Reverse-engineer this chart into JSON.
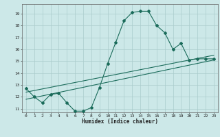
{
  "xlabel": "Humidex (Indice chaleur)",
  "ylabel": "",
  "background_color": "#cce8e8",
  "grid_color": "#aacccc",
  "line_color": "#1a6b5a",
  "xlim": [
    -0.5,
    23.5
  ],
  "ylim": [
    10.7,
    19.8
  ],
  "yticks": [
    11,
    12,
    13,
    14,
    15,
    16,
    17,
    18,
    19
  ],
  "xticks": [
    0,
    1,
    2,
    3,
    4,
    5,
    6,
    7,
    8,
    9,
    10,
    11,
    12,
    13,
    14,
    15,
    16,
    17,
    18,
    19,
    20,
    21,
    22,
    23
  ],
  "curve1_x": [
    0,
    1,
    2,
    3,
    4,
    5,
    6,
    7,
    8,
    9,
    10,
    11,
    12,
    13,
    14,
    15,
    16,
    17,
    18,
    19,
    20,
    21,
    22,
    23
  ],
  "curve1_y": [
    12.7,
    12.0,
    11.5,
    12.2,
    12.3,
    11.5,
    10.8,
    10.8,
    11.1,
    12.8,
    14.8,
    16.6,
    18.4,
    19.1,
    19.2,
    19.2,
    18.0,
    17.4,
    16.0,
    16.5,
    15.1,
    15.2,
    15.2,
    15.2
  ],
  "line1_x": [
    0,
    23
  ],
  "line1_y": [
    11.8,
    15.1
  ],
  "line2_x": [
    0,
    23
  ],
  "line2_y": [
    12.4,
    15.5
  ]
}
